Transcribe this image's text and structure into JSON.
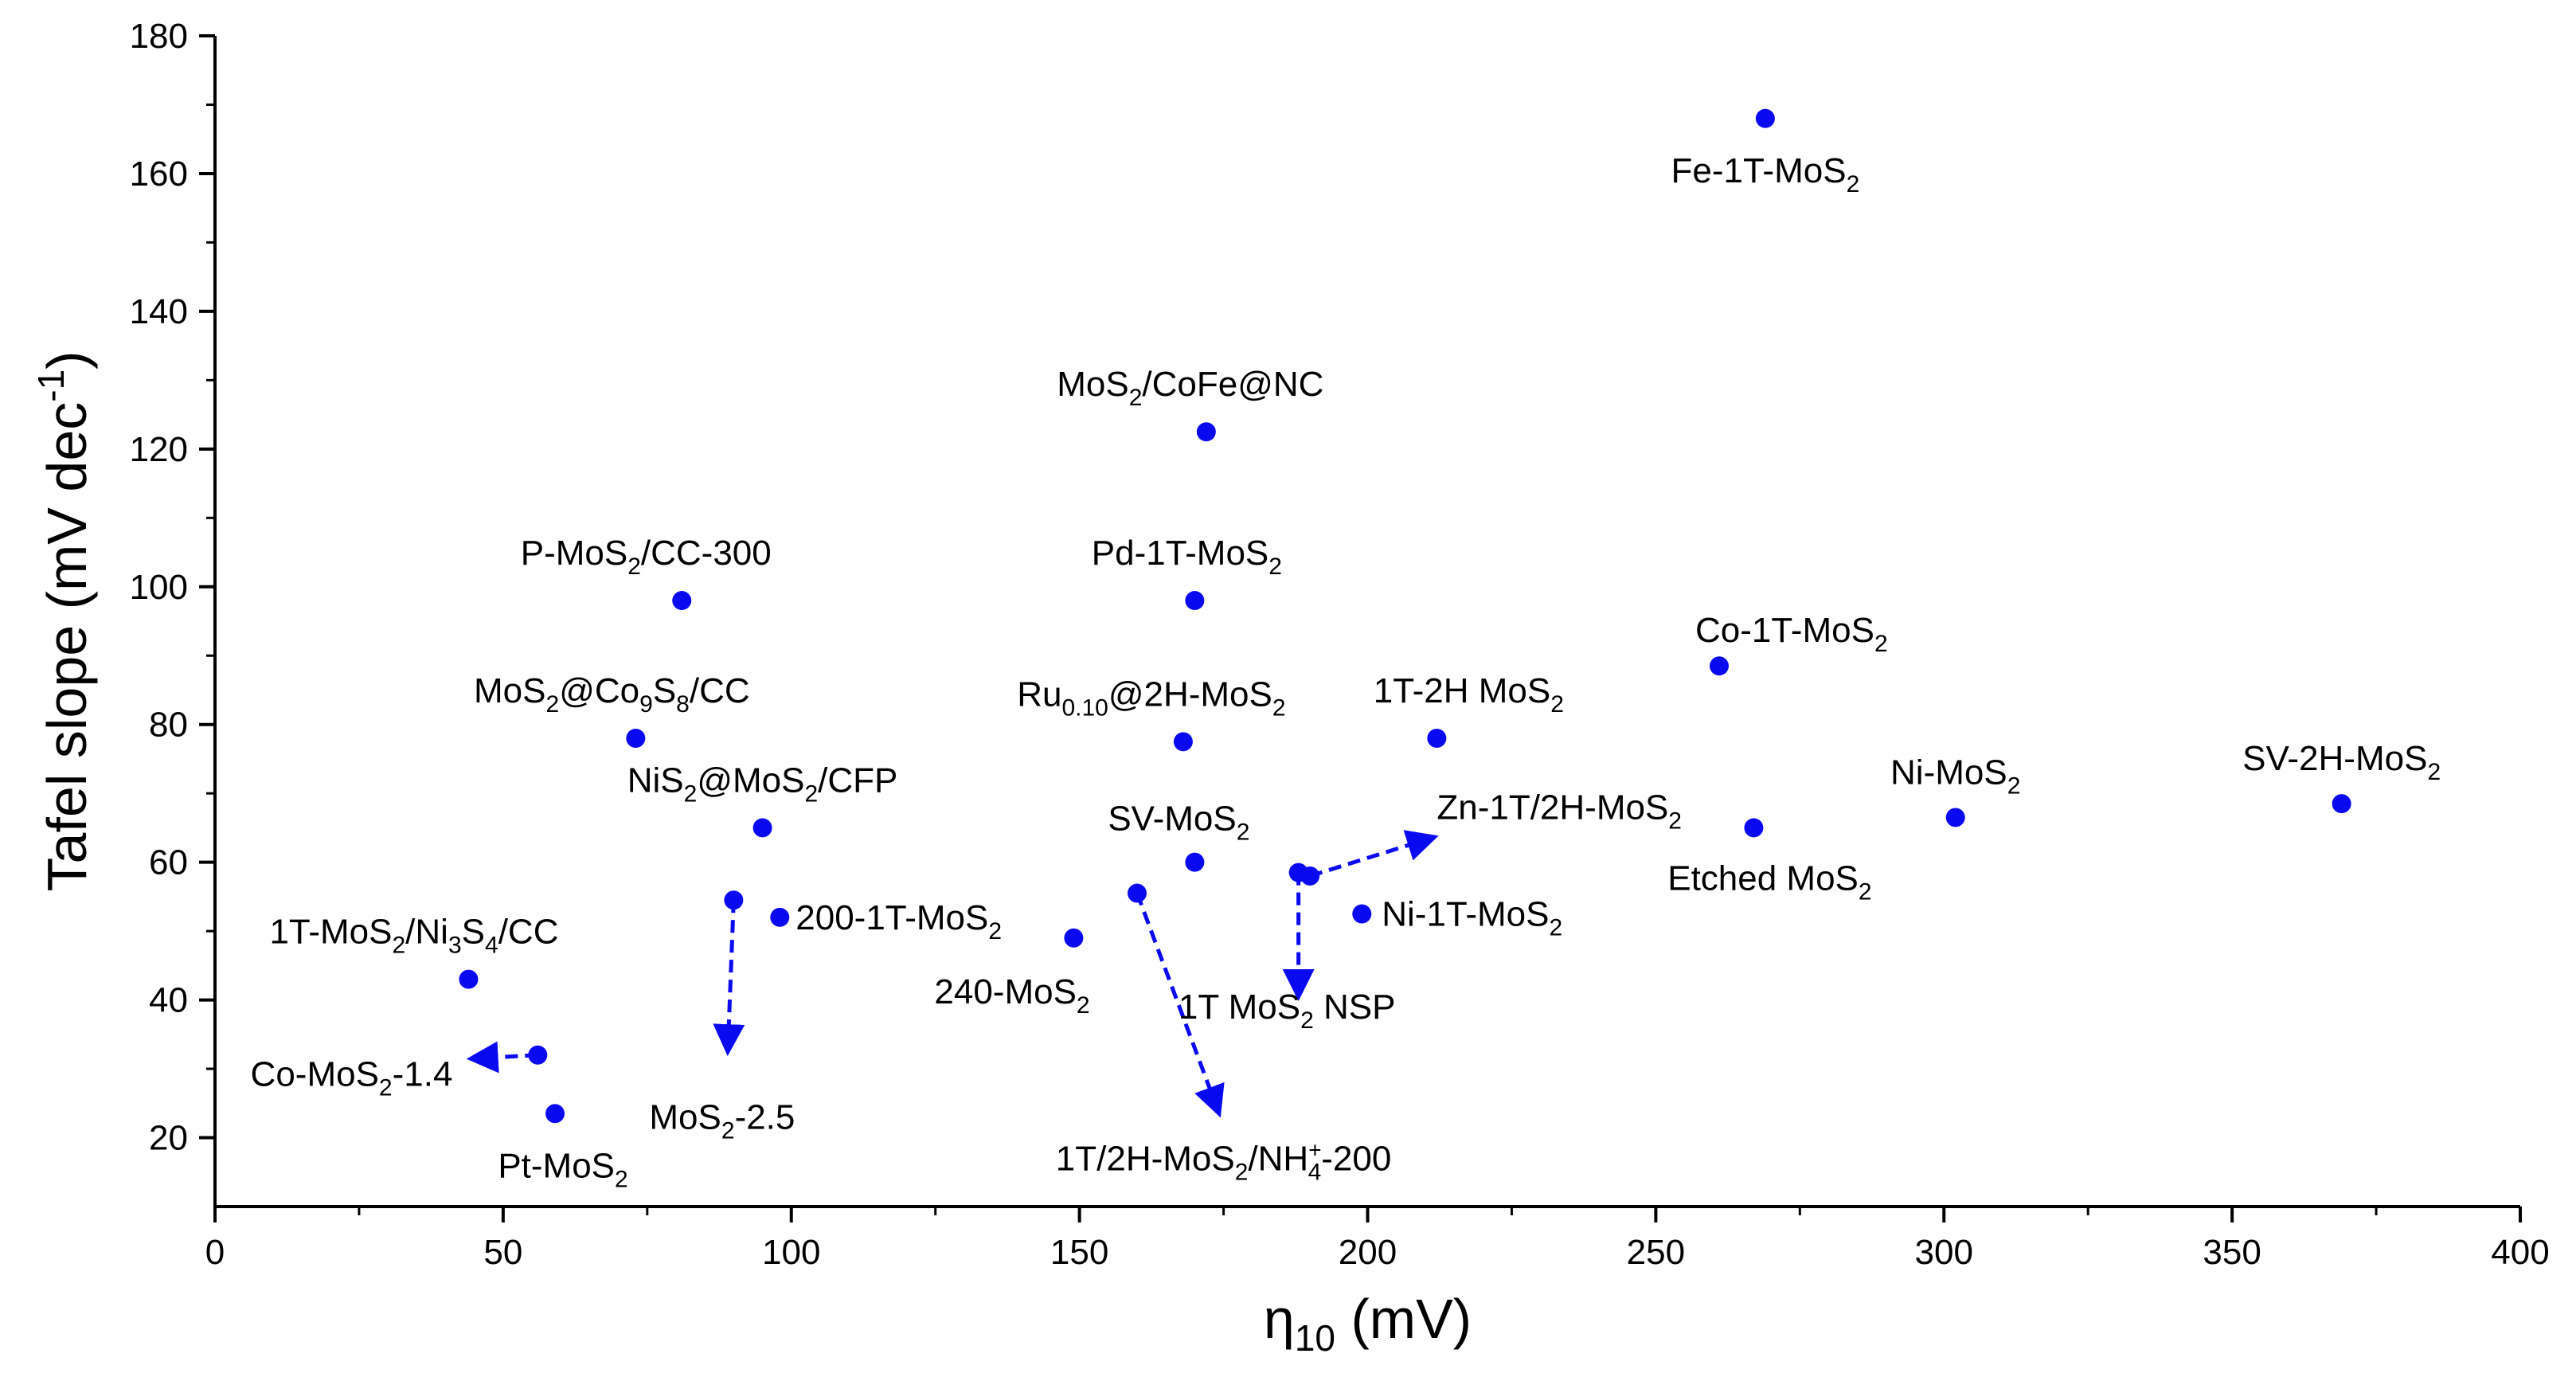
{
  "chart_data": {
    "type": "scatter",
    "title": "",
    "xlabel": "η10 (mV)",
    "xlabel_parts": {
      "main": "η",
      "sub": "10",
      "rest": " (mV)"
    },
    "ylabel": "Tafel slope (mV dec-1)",
    "ylabel_parts": {
      "main": "Tafel slope (mV dec",
      "sup": "-1",
      "rest": ")"
    },
    "xlim": [
      0,
      400
    ],
    "ylim": [
      10,
      180
    ],
    "xticks": [
      0,
      50,
      100,
      150,
      200,
      250,
      300,
      350,
      400
    ],
    "yticks": [
      20,
      40,
      60,
      80,
      100,
      120,
      140,
      160,
      180
    ],
    "grid": false,
    "marker_color": "#0a0af0",
    "points": [
      {
        "name": "Fe-1T-MoS2",
        "label": [
          [
            "Fe-1T-MoS",
            ""
          ],
          [
            "2",
            "sub"
          ]
        ],
        "x": 269,
        "y": 168,
        "anchor": "below"
      },
      {
        "name": "MoS2/CoFe@NC",
        "label": [
          [
            "MoS",
            ""
          ],
          [
            "2",
            "sub"
          ],
          [
            "/CoFe@NC",
            ""
          ]
        ],
        "x": 172,
        "y": 122.5,
        "anchor": "above"
      },
      {
        "name": "P-MoS2/CC-300",
        "label": [
          [
            "P-MoS",
            ""
          ],
          [
            "2",
            "sub"
          ],
          [
            "/CC-300",
            ""
          ]
        ],
        "x": 81,
        "y": 98,
        "anchor": "above"
      },
      {
        "name": "Pd-1T-MoS2",
        "label": [
          [
            "Pd-1T-MoS",
            ""
          ],
          [
            "2",
            "sub"
          ]
        ],
        "x": 170,
        "y": 98,
        "anchor": "above"
      },
      {
        "name": "Co-1T-MoS2",
        "label": [
          [
            "Co-1T-MoS",
            ""
          ],
          [
            "2",
            "sub"
          ]
        ],
        "x": 261,
        "y": 88.5,
        "anchor": "above"
      },
      {
        "name": "MoS2@Co9S8/CC",
        "label": [
          [
            "MoS",
            ""
          ],
          [
            "2",
            "sub"
          ],
          [
            "@Co",
            ""
          ],
          [
            "9",
            "sub"
          ],
          [
            "S",
            ""
          ],
          [
            "8",
            "sub"
          ],
          [
            "/CC",
            ""
          ]
        ],
        "x": 73,
        "y": 78,
        "anchor": "above"
      },
      {
        "name": "Ru0.10@2H-MoS2",
        "label": [
          [
            "Ru",
            ""
          ],
          [
            "0.10",
            "sub"
          ],
          [
            "@2H-MoS",
            ""
          ],
          [
            "2",
            "sub"
          ]
        ],
        "x": 168,
        "y": 77.5,
        "anchor": "above"
      },
      {
        "name": "1T-2H MoS2",
        "label": [
          [
            "1T-2H MoS",
            ""
          ],
          [
            "2",
            "sub"
          ]
        ],
        "x": 212,
        "y": 78,
        "anchor": "above"
      },
      {
        "name": "NiS2@MoS2/CFP",
        "label": [
          [
            "NiS",
            ""
          ],
          [
            "2",
            "sub"
          ],
          [
            "@MoS",
            ""
          ],
          [
            "2",
            "sub"
          ],
          [
            "/CFP",
            ""
          ]
        ],
        "x": 95,
        "y": 65,
        "anchor": "above"
      },
      {
        "name": "Etched MoS2",
        "label": [
          [
            "Etched MoS",
            ""
          ],
          [
            "2",
            "sub"
          ]
        ],
        "x": 267,
        "y": 65,
        "anchor": "below"
      },
      {
        "name": "Ni-MoS2",
        "label": [
          [
            "Ni-MoS",
            ""
          ],
          [
            "2",
            "sub"
          ]
        ],
        "x": 302,
        "y": 66.5,
        "anchor": "above"
      },
      {
        "name": "SV-2H-MoS2",
        "label": [
          [
            "SV-2H-MoS",
            ""
          ],
          [
            "2",
            "sub"
          ]
        ],
        "x": 369,
        "y": 68.5,
        "anchor": "above"
      },
      {
        "name": "SV-MoS2",
        "label": [
          [
            "SV-MoS",
            ""
          ],
          [
            "2",
            "sub"
          ]
        ],
        "x": 170,
        "y": 60,
        "anchor": "above"
      },
      {
        "name": "Zn-1T/2H-MoS2",
        "label": [
          [
            "Zn-1T/2H-MoS",
            ""
          ],
          [
            "2",
            "sub"
          ]
        ],
        "x": 190,
        "y": 58,
        "anchor": "arrow",
        "arrow_to": [
          211,
          63.5
        ],
        "label_at": [
          212,
          68
        ]
      },
      {
        "name": "1T MoS2 NSP",
        "label": [
          [
            "1T MoS",
            ""
          ],
          [
            "2",
            "sub"
          ],
          [
            " NSP",
            ""
          ]
        ],
        "x": 188,
        "y": 58.5,
        "anchor": "arrow",
        "arrow_to": [
          188,
          41
        ],
        "label_at": [
          186,
          39
        ]
      },
      {
        "name": "Ni-1T-MoS2",
        "label": [
          [
            "Ni-1T-MoS",
            ""
          ],
          [
            "2",
            "sub"
          ]
        ],
        "x": 199,
        "y": 52.5,
        "anchor": "right"
      },
      {
        "name": "MoS2-2.5",
        "label": [
          [
            "MoS",
            ""
          ],
          [
            "2",
            "sub"
          ],
          [
            "-2.5",
            ""
          ]
        ],
        "x": 90,
        "y": 54.5,
        "anchor": "arrow",
        "arrow_to": [
          89,
          33
        ],
        "label_at": [
          88,
          23
        ]
      },
      {
        "name": "200-1T-MoS2",
        "label": [
          [
            "200-1T-MoS",
            ""
          ],
          [
            "2",
            "sub"
          ]
        ],
        "x": 98,
        "y": 52,
        "anchor": "right"
      },
      {
        "name": "240-MoS2",
        "label": [
          [
            "240-MoS",
            ""
          ],
          [
            "2",
            "sub"
          ]
        ],
        "x": 149,
        "y": 49,
        "anchor": "below-left"
      },
      {
        "name": "1T/2H-MoS2/NH4+-200",
        "label": [
          [
            "1T/2H-MoS",
            ""
          ],
          [
            "2",
            "sub"
          ],
          [
            "/NH",
            ""
          ],
          [
            "+",
            "supsub4"
          ],
          [
            "-200",
            ""
          ]
        ],
        "x": 160,
        "y": 55.5,
        "anchor": "arrow",
        "arrow_to": [
          174,
          24
        ],
        "label_at": [
          175,
          17
        ]
      },
      {
        "name": "1T-MoS2/Ni3S4/CC",
        "label": [
          [
            "1T-MoS",
            ""
          ],
          [
            "2",
            "sub"
          ],
          [
            "/Ni",
            ""
          ],
          [
            "3",
            "sub"
          ],
          [
            "S",
            ""
          ],
          [
            "4",
            "sub"
          ],
          [
            "/CC",
            ""
          ]
        ],
        "x": 44,
        "y": 43,
        "anchor": "above"
      },
      {
        "name": "Co-MoS2-1.4",
        "label": [
          [
            "Co-MoS",
            ""
          ],
          [
            "2",
            "sub"
          ],
          [
            "-1.4",
            ""
          ]
        ],
        "x": 56,
        "y": 32,
        "anchor": "arrow",
        "arrow_to": [
          45,
          31.5
        ],
        "label_at": [
          44,
          31
        ]
      },
      {
        "name": "Pt-MoS2",
        "label": [
          [
            "Pt-MoS",
            ""
          ],
          [
            "2",
            "sub"
          ]
        ],
        "x": 59,
        "y": 23.5,
        "anchor": "below"
      }
    ]
  }
}
